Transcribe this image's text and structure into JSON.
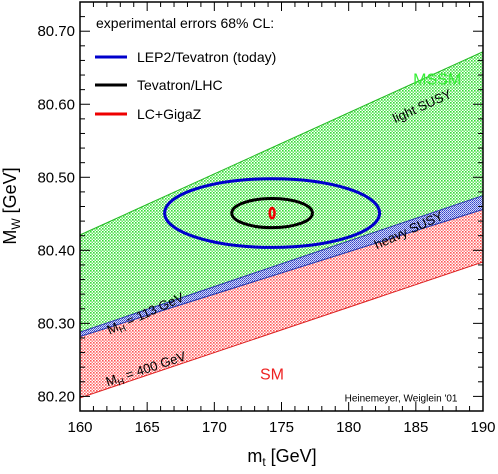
{
  "chart_data": {
    "type": "line",
    "xlabel": "m_t [GeV]",
    "xlabel_main": "m",
    "xlabel_sub": "t",
    "xlabel_unit": " [GeV]",
    "ylabel": "M_W [GeV]",
    "ylabel_main": "M",
    "ylabel_sub": "W",
    "ylabel_unit": " [GeV]",
    "xlim": [
      160,
      190
    ],
    "ylim": [
      80.18,
      80.74
    ],
    "x_ticks": [
      160,
      165,
      170,
      175,
      180,
      185,
      190
    ],
    "y_ticks": [
      80.2,
      80.3,
      80.4,
      80.5,
      80.6,
      80.7
    ],
    "x_tick_labels": [
      "160",
      "165",
      "170",
      "175",
      "180",
      "185",
      "190"
    ],
    "y_tick_labels": [
      "80.20",
      "80.30",
      "80.40",
      "80.50",
      "80.60",
      "80.70"
    ],
    "grid": false,
    "legend_placement": "top-left",
    "legend_title": "experimental errors 68% CL:",
    "regions": [
      {
        "name": "MSSM",
        "color": "#33dd33",
        "upper_line": [
          [
            160,
            80.421
          ],
          [
            190,
            80.672
          ]
        ],
        "lower_line": [
          [
            160,
            80.288
          ],
          [
            190,
            80.475
          ]
        ]
      },
      {
        "name": "SM",
        "color": "#ff4444",
        "upper_line": [
          [
            160,
            80.282
          ],
          [
            190,
            80.456
          ]
        ],
        "lower_line": [
          [
            160,
            80.198
          ],
          [
            190,
            80.384
          ]
        ]
      },
      {
        "name": "overlap",
        "color": "#3344cc",
        "upper_line": [
          [
            160,
            80.288
          ],
          [
            190,
            80.475
          ]
        ],
        "lower_line": [
          [
            160,
            80.282
          ],
          [
            190,
            80.456
          ]
        ]
      }
    ],
    "series": [
      {
        "name": "LEP2/Tevatron (today)",
        "color": "#0000cc",
        "type": "ellipse",
        "center": [
          174.3,
          80.451
        ],
        "semi_axes": [
          8.0,
          0.047
        ]
      },
      {
        "name": "Tevatron/LHC",
        "color": "#000000",
        "type": "ellipse",
        "center": [
          174.3,
          80.451
        ],
        "semi_axes": [
          3.0,
          0.02
        ]
      },
      {
        "name": "LC+GigaZ",
        "color": "#ee0000",
        "type": "ellipse",
        "center": [
          174.3,
          80.451
        ],
        "semi_axes": [
          0.18,
          0.007
        ]
      }
    ],
    "annotations": {
      "mssm": {
        "text": "MSSM",
        "color": "#33ee33",
        "x": 184.8,
        "y": 80.627
      },
      "light_susy": {
        "text": "light SUSY",
        "x": 185.6,
        "y": 80.592
      },
      "heavy_susy": {
        "text": "heavy SUSY",
        "x": 184.6,
        "y": 80.422
      },
      "mh113_main": "M",
      "mh113_sub": "H",
      "mh113_rest": " = 113 GeV",
      "mh113_pos": [
        165.0,
        80.308
      ],
      "mh400_main": "M",
      "mh400_sub": "H",
      "mh400_rest": " = 400 GeV",
      "mh400_pos": [
        165.0,
        80.232
      ],
      "sm": {
        "text": "SM",
        "color": "#ee2222",
        "x": 173.4,
        "y": 80.223
      },
      "credit": {
        "text": "Heinemeyer, Weiglein '01",
        "x": 183.9,
        "y": 80.193
      }
    }
  }
}
